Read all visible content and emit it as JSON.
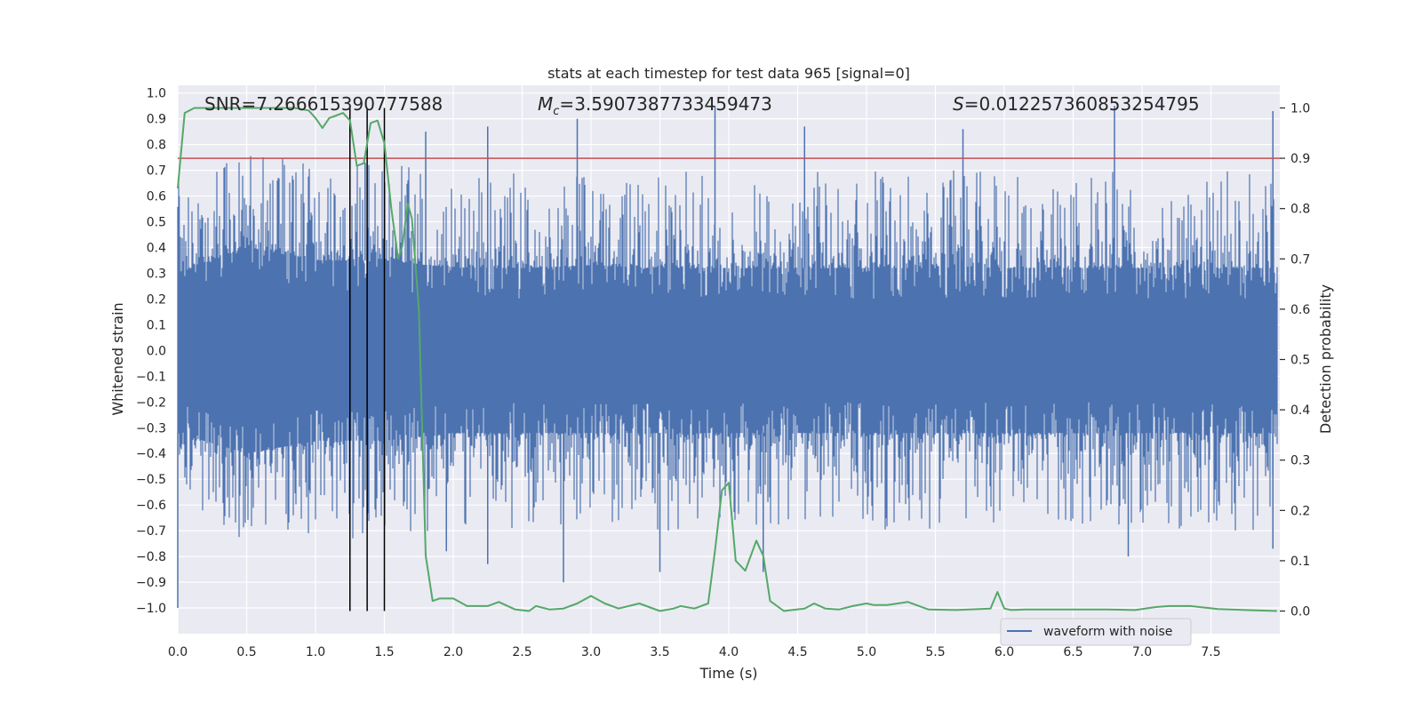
{
  "colors": {
    "background": "#ffffff",
    "axes_face": "#eaeaf2",
    "grid": "#ffffff",
    "waveform": "#4c72b0",
    "probability": "#55a868",
    "threshold": "#c44e52",
    "marker_lines": "#000000",
    "text": "#262626"
  },
  "chart_data": {
    "type": "line",
    "title": "stats at each timestep for test data 965 [signal=0]",
    "xlabel": "Time (s)",
    "ylabel": "Whitened strain",
    "y2label": "Detection probability",
    "xlim": [
      0.0,
      8.0
    ],
    "ylim": [
      -1.1,
      1.03
    ],
    "y2lim": [
      -0.045,
      1.045
    ],
    "xticks": [
      0.0,
      0.5,
      1.0,
      1.5,
      2.0,
      2.5,
      3.0,
      3.5,
      4.0,
      4.5,
      5.0,
      5.5,
      6.0,
      6.5,
      7.0,
      7.5
    ],
    "xtick_labels": [
      "0.0",
      "0.5",
      "1.0",
      "1.5",
      "2.0",
      "2.5",
      "3.0",
      "3.5",
      "4.0",
      "4.5",
      "5.0",
      "5.5",
      "6.0",
      "6.5",
      "7.0",
      "7.5"
    ],
    "yticks": [
      1.0,
      0.9,
      0.8,
      0.7,
      0.6,
      0.5,
      0.4,
      0.3,
      0.2,
      0.1,
      0.0,
      -0.1,
      -0.2,
      -0.3,
      -0.4,
      -0.5,
      -0.6,
      -0.7,
      -0.8,
      -0.9,
      -1.0
    ],
    "ytick_labels": [
      "1.0",
      "0.9",
      "0.8",
      "0.7",
      "0.6",
      "0.5",
      "0.4",
      "0.3",
      "0.2",
      "0.1",
      "0.0",
      "−0.1",
      "−0.2",
      "−0.3",
      "−0.4",
      "−0.5",
      "−0.6",
      "−0.7",
      "−0.8",
      "−0.9",
      "−1.0"
    ],
    "y2ticks": [
      1.0,
      0.9,
      0.8,
      0.7,
      0.6,
      0.5,
      0.4,
      0.3,
      0.2,
      0.1,
      0.0
    ],
    "y2tick_labels": [
      "1.0",
      "0.9",
      "0.8",
      "0.7",
      "0.6",
      "0.5",
      "0.4",
      "0.3",
      "0.2",
      "0.1",
      "0.0"
    ],
    "grid": true,
    "legend": {
      "position": "lower-right",
      "entries": [
        "waveform with noise"
      ]
    },
    "annotations": [
      {
        "label": "SNR=7.266615390777588",
        "kind": "snr",
        "value": "7.266615390777588"
      },
      {
        "label": "Mc=3.5907387733459473",
        "kind": "chirp-mass",
        "value": "3.5907387733459473"
      },
      {
        "label": "S=0.012257360853254795",
        "kind": "spin",
        "value": "0.012257360853254795"
      }
    ],
    "threshold": {
      "axis": "y2",
      "value": 0.9
    },
    "vertical_lines": [
      1.25,
      1.375,
      1.5
    ],
    "series": [
      {
        "name": "waveform with noise",
        "axis": "y",
        "style": "dense-noise",
        "envelope": {
          "x": [
            0.0,
            0.5,
            1.0,
            1.5,
            2.0,
            2.5,
            3.0,
            3.5,
            4.0,
            4.5,
            5.0,
            5.5,
            6.0,
            6.5,
            7.0,
            7.5,
            7.98
          ],
          "core_max": [
            0.3,
            0.4,
            0.35,
            0.35,
            0.32,
            0.32,
            0.33,
            0.32,
            0.32,
            0.32,
            0.32,
            0.32,
            0.32,
            0.32,
            0.32,
            0.32,
            0.32
          ],
          "core_min": [
            -0.32,
            -0.4,
            -0.35,
            -0.35,
            -0.32,
            -0.32,
            -0.32,
            -0.32,
            -0.32,
            -0.32,
            -0.32,
            -0.32,
            -0.32,
            -0.32,
            -0.32,
            -0.32,
            -0.32
          ]
        },
        "peaks": [
          {
            "x": 0.0,
            "y": -1.0
          },
          {
            "x": 0.01,
            "y": 0.6
          },
          {
            "x": 1.25,
            "y": 0.75
          },
          {
            "x": 1.36,
            "y": 0.73
          },
          {
            "x": 1.8,
            "y": 0.85
          },
          {
            "x": 2.25,
            "y": 0.87
          },
          {
            "x": 2.9,
            "y": 0.9
          },
          {
            "x": 3.9,
            "y": 0.95
          },
          {
            "x": 4.55,
            "y": 0.87
          },
          {
            "x": 5.7,
            "y": 0.86
          },
          {
            "x": 6.8,
            "y": 0.95
          },
          {
            "x": 7.95,
            "y": 0.93
          },
          {
            "x": 1.95,
            "y": -0.78
          },
          {
            "x": 2.25,
            "y": -0.83
          },
          {
            "x": 2.8,
            "y": -0.9
          },
          {
            "x": 3.5,
            "y": -0.86
          },
          {
            "x": 4.25,
            "y": -0.86
          },
          {
            "x": 6.9,
            "y": -0.8
          },
          {
            "x": 7.95,
            "y": -0.77
          }
        ]
      },
      {
        "name": "",
        "axis": "y2",
        "x": [
          0.0,
          0.05,
          0.12,
          0.3,
          0.5,
          0.7,
          0.85,
          0.95,
          1.0,
          1.05,
          1.1,
          1.15,
          1.2,
          1.25,
          1.3,
          1.35,
          1.4,
          1.45,
          1.5,
          1.55,
          1.6,
          1.63,
          1.67,
          1.7,
          1.75,
          1.8,
          1.85,
          1.9,
          2.0,
          2.1,
          2.25,
          2.33,
          2.45,
          2.55,
          2.6,
          2.7,
          2.8,
          2.9,
          3.0,
          3.1,
          3.2,
          3.35,
          3.5,
          3.6,
          3.65,
          3.75,
          3.85,
          3.9,
          3.95,
          4.0,
          4.05,
          4.12,
          4.2,
          4.25,
          4.3,
          4.4,
          4.55,
          4.62,
          4.7,
          4.8,
          4.9,
          5.0,
          5.05,
          5.15,
          5.3,
          5.45,
          5.65,
          5.9,
          5.95,
          6.0,
          6.05,
          6.15,
          6.3,
          6.5,
          6.75,
          6.95,
          7.1,
          7.2,
          7.35,
          7.55,
          7.75,
          7.98
        ],
        "values": [
          0.84,
          0.99,
          1.0,
          1.0,
          1.0,
          1.0,
          1.0,
          0.995,
          0.98,
          0.96,
          0.98,
          0.985,
          0.99,
          0.975,
          0.885,
          0.89,
          0.97,
          0.975,
          0.93,
          0.8,
          0.7,
          0.725,
          0.81,
          0.78,
          0.6,
          0.11,
          0.02,
          0.025,
          0.025,
          0.01,
          0.01,
          0.018,
          0.003,
          0.0,
          0.01,
          0.003,
          0.005,
          0.015,
          0.03,
          0.015,
          0.005,
          0.015,
          0.0,
          0.005,
          0.01,
          0.005,
          0.015,
          0.12,
          0.24,
          0.255,
          0.1,
          0.08,
          0.14,
          0.11,
          0.02,
          0.0,
          0.005,
          0.015,
          0.005,
          0.003,
          0.01,
          0.015,
          0.012,
          0.012,
          0.018,
          0.003,
          0.002,
          0.005,
          0.038,
          0.005,
          0.002,
          0.003,
          0.003,
          0.003,
          0.003,
          0.002,
          0.008,
          0.01,
          0.01,
          0.004,
          0.002,
          0.0
        ]
      }
    ]
  }
}
